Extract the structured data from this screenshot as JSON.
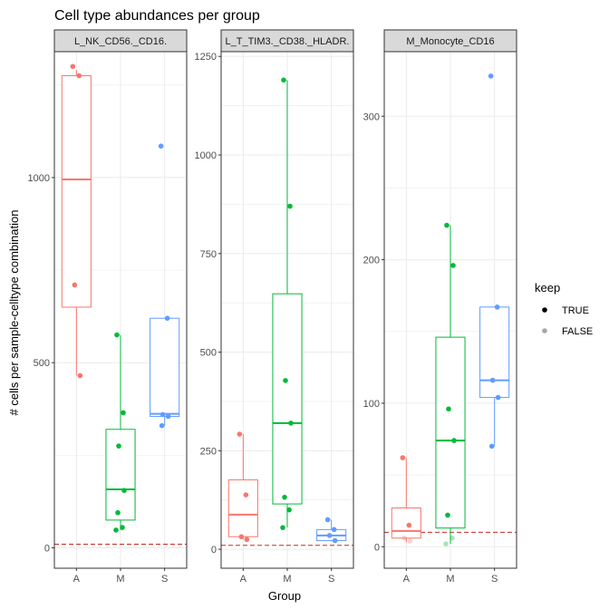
{
  "chart_data": {
    "type": "boxplot",
    "title": "Cell type abundances per group",
    "xlabel": "Group",
    "ylabel": "# cells per sample-celltype combination",
    "categories": [
      "A",
      "M",
      "S"
    ],
    "colors": {
      "A": "#F8766D",
      "M": "#00BA38",
      "S": "#619CFF",
      "threshold": "#C62828"
    },
    "threshold": 10,
    "legend": {
      "title": "keep",
      "items": [
        "TRUE",
        "FALSE"
      ],
      "position": "right"
    },
    "grid": true,
    "facets": [
      {
        "label": "L_NK_CD56._CD16.",
        "ylim": [
          -55,
          1340
        ],
        "yticks": [
          0,
          500,
          1000
        ],
        "boxes": [
          {
            "group": "A",
            "q1": 650,
            "median": 995,
            "q3": 1275,
            "lower": 465,
            "upper": 1290
          },
          {
            "group": "M",
            "q1": 75,
            "median": 158,
            "q3": 320,
            "lower": 48,
            "upper": 575
          },
          {
            "group": "S",
            "q1": 355,
            "median": 362,
            "q3": 620,
            "lower": 330,
            "upper": 620
          }
        ],
        "points": [
          {
            "group": "A",
            "y": 1300,
            "keep": true
          },
          {
            "group": "A",
            "y": 1275,
            "keep": true
          },
          {
            "group": "A",
            "y": 710,
            "keep": true
          },
          {
            "group": "A",
            "y": 465,
            "keep": true
          },
          {
            "group": "M",
            "y": 575,
            "keep": true
          },
          {
            "group": "M",
            "y": 365,
            "keep": true
          },
          {
            "group": "M",
            "y": 275,
            "keep": true
          },
          {
            "group": "M",
            "y": 155,
            "keep": true
          },
          {
            "group": "M",
            "y": 95,
            "keep": true
          },
          {
            "group": "M",
            "y": 55,
            "keep": true
          },
          {
            "group": "M",
            "y": 48,
            "keep": true
          },
          {
            "group": "S",
            "y": 1085,
            "keep": true
          },
          {
            "group": "S",
            "y": 620,
            "keep": true
          },
          {
            "group": "S",
            "y": 360,
            "keep": true
          },
          {
            "group": "S",
            "y": 355,
            "keep": true
          },
          {
            "group": "S",
            "y": 330,
            "keep": true
          }
        ]
      },
      {
        "label": "L_T_TIM3._CD38._HLADR.",
        "ylim": [
          -48,
          1262
        ],
        "yticks": [
          0,
          250,
          500,
          750,
          1000,
          1250
        ],
        "boxes": [
          {
            "group": "A",
            "q1": 32,
            "median": 88,
            "q3": 176,
            "lower": 25,
            "upper": 292
          },
          {
            "group": "M",
            "q1": 115,
            "median": 320,
            "q3": 648,
            "lower": 55,
            "upper": 1190
          },
          {
            "group": "S",
            "q1": 22,
            "median": 35,
            "q3": 50,
            "lower": 20,
            "upper": 75
          }
        ],
        "points": [
          {
            "group": "A",
            "y": 292,
            "keep": true
          },
          {
            "group": "A",
            "y": 138,
            "keep": true
          },
          {
            "group": "A",
            "y": 32,
            "keep": true
          },
          {
            "group": "A",
            "y": 25,
            "keep": true
          },
          {
            "group": "M",
            "y": 1190,
            "keep": true
          },
          {
            "group": "M",
            "y": 870,
            "keep": true
          },
          {
            "group": "M",
            "y": 428,
            "keep": true
          },
          {
            "group": "M",
            "y": 320,
            "keep": true
          },
          {
            "group": "M",
            "y": 132,
            "keep": true
          },
          {
            "group": "M",
            "y": 100,
            "keep": true
          },
          {
            "group": "M",
            "y": 55,
            "keep": true
          },
          {
            "group": "S",
            "y": 75,
            "keep": true
          },
          {
            "group": "S",
            "y": 50,
            "keep": true
          },
          {
            "group": "S",
            "y": 35,
            "keep": true
          },
          {
            "group": "S",
            "y": 22,
            "keep": true
          }
        ]
      },
      {
        "label": "M_Monocyte_CD16",
        "ylim": [
          -15,
          345
        ],
        "yticks": [
          0,
          100,
          200,
          300
        ],
        "boxes": [
          {
            "group": "A",
            "q1": 6,
            "median": 11,
            "q3": 27,
            "lower": 3,
            "upper": 62
          },
          {
            "group": "M",
            "q1": 13,
            "median": 74,
            "q3": 146,
            "lower": 2,
            "upper": 224
          },
          {
            "group": "S",
            "q1": 104,
            "median": 116,
            "q3": 167,
            "lower": 70,
            "upper": 167
          }
        ],
        "points": [
          {
            "group": "A",
            "y": 62,
            "keep": true
          },
          {
            "group": "A",
            "y": 15,
            "keep": true
          },
          {
            "group": "A",
            "y": 6,
            "keep": false
          },
          {
            "group": "A",
            "y": 4,
            "keep": false
          },
          {
            "group": "M",
            "y": 224,
            "keep": true
          },
          {
            "group": "M",
            "y": 196,
            "keep": true
          },
          {
            "group": "M",
            "y": 96,
            "keep": true
          },
          {
            "group": "M",
            "y": 74,
            "keep": true
          },
          {
            "group": "M",
            "y": 22,
            "keep": true
          },
          {
            "group": "M",
            "y": 6,
            "keep": false
          },
          {
            "group": "M",
            "y": 2,
            "keep": false
          },
          {
            "group": "S",
            "y": 328,
            "keep": true
          },
          {
            "group": "S",
            "y": 167,
            "keep": true
          },
          {
            "group": "S",
            "y": 116,
            "keep": true
          },
          {
            "group": "S",
            "y": 104,
            "keep": true
          },
          {
            "group": "S",
            "y": 70,
            "keep": true
          }
        ]
      }
    ]
  }
}
